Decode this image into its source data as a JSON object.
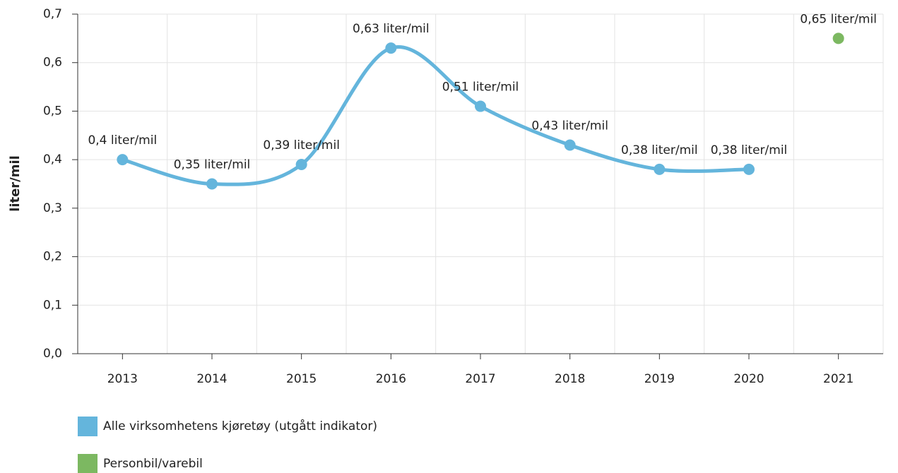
{
  "chart_data": {
    "type": "line",
    "y_label": "liter/mil",
    "categories": [
      "2013",
      "2014",
      "2015",
      "2016",
      "2017",
      "2018",
      "2019",
      "2020",
      "2021"
    ],
    "series": [
      {
        "name": "Alle virksomhetens kjøretøy (utgått indikator)",
        "color": "#64b5dc",
        "values": [
          0.4,
          0.35,
          0.39,
          0.63,
          0.51,
          0.43,
          0.38,
          0.38,
          null
        ],
        "value_labels": [
          "0,4 liter/mil",
          "0,35 liter/mil",
          "0,39 liter/mil",
          "0,63 liter/mil",
          "0,51 liter/mil",
          "0,43 liter/mil",
          "0,38 liter/mil",
          "0,38 liter/mil",
          null
        ]
      },
      {
        "name": "Personbil/varebil",
        "color": "#7cb861",
        "values": [
          null,
          null,
          null,
          null,
          null,
          null,
          null,
          null,
          0.65
        ],
        "value_labels": [
          null,
          null,
          null,
          null,
          null,
          null,
          null,
          null,
          "0,65 liter/mil"
        ]
      }
    ],
    "ylim": [
      0,
      0.7
    ],
    "yticks": [
      {
        "value": 0,
        "label": "0,0"
      },
      {
        "value": 0.1,
        "label": "0,1"
      },
      {
        "value": 0.2,
        "label": "0,2"
      },
      {
        "value": 0.3,
        "label": "0,3"
      },
      {
        "value": 0.4,
        "label": "0,4"
      },
      {
        "value": 0.5,
        "label": "0,5"
      },
      {
        "value": 0.6,
        "label": "0,6"
      },
      {
        "value": 0.7,
        "label": "0,7"
      }
    ],
    "grid": true
  }
}
